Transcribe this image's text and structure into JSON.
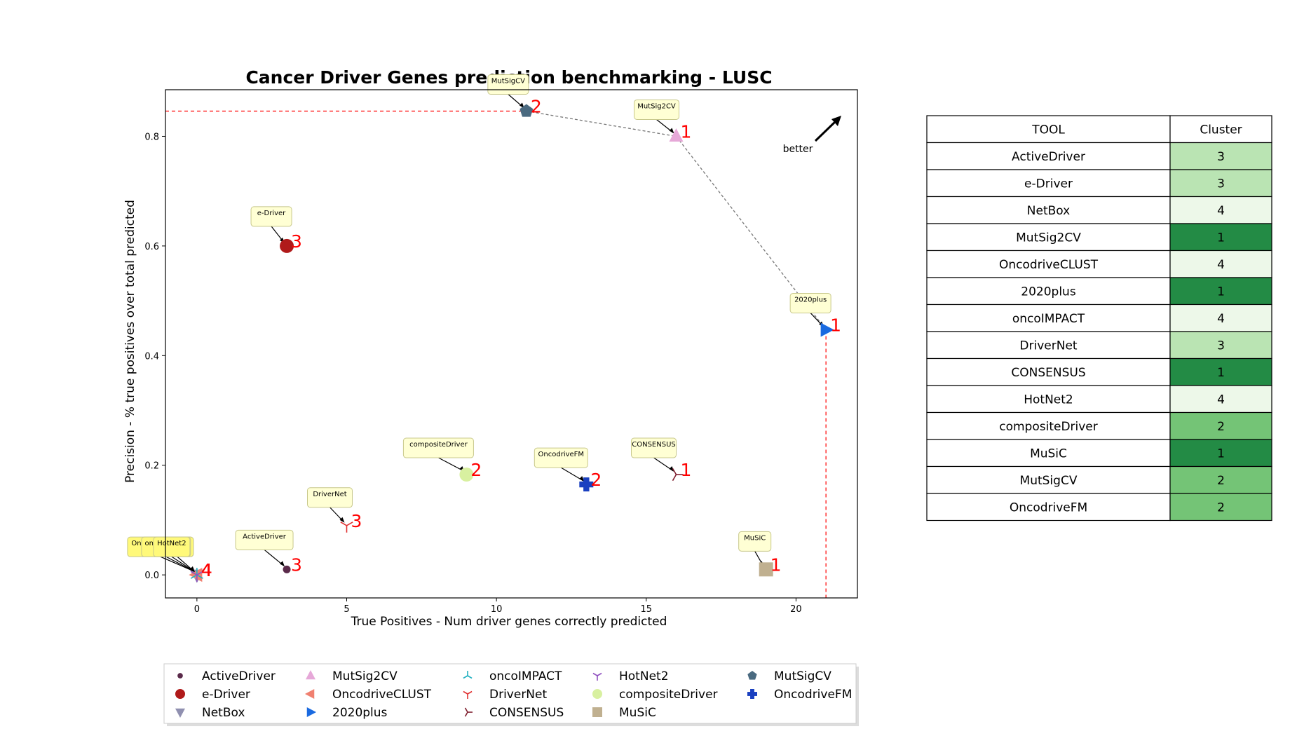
{
  "chart_data": {
    "type": "scatter",
    "title": "Cancer Driver Genes prediction benchmarking - LUSC",
    "xlabel": "True Positives - Num driver genes correctly predicted",
    "ylabel": "Precision - % true positives over total predicted",
    "xlim": [
      -1.05,
      22.05
    ],
    "ylim": [
      -0.042,
      0.885
    ],
    "xticks": [
      0,
      5,
      10,
      15,
      20
    ],
    "yticks": [
      0.0,
      0.2,
      0.4,
      0.6,
      0.8
    ],
    "grid": false,
    "legend_position": "below",
    "better_label": "better",
    "points": [
      {
        "name": "ActiveDriver",
        "x": 3,
        "y": 0.01,
        "cluster": 3,
        "marker": "circle-small",
        "color": "#5a2a4a"
      },
      {
        "name": "e-Driver",
        "x": 3,
        "y": 0.6,
        "cluster": 3,
        "marker": "circle",
        "color": "#b01a1a"
      },
      {
        "name": "NetBox",
        "x": 0,
        "y": 0.0,
        "cluster": 4,
        "marker": "triangle-down",
        "color": "#9090b0"
      },
      {
        "name": "MutSig2CV",
        "x": 16,
        "y": 0.8,
        "cluster": 1,
        "marker": "triangle-up",
        "color": "#e6a8d8"
      },
      {
        "name": "OncodriveCLUST",
        "x": 0,
        "y": 0.0,
        "cluster": 4,
        "marker": "triangle-left",
        "color": "#f08070"
      },
      {
        "name": "2020plus",
        "x": 21,
        "y": 0.447,
        "cluster": 1,
        "marker": "triangle-right",
        "color": "#1a6ae0"
      },
      {
        "name": "oncoIMPACT",
        "x": 0,
        "y": 0.0,
        "cluster": 4,
        "marker": "tri-down",
        "color": "#20b0c0"
      },
      {
        "name": "DriverNet",
        "x": 5,
        "y": 0.09,
        "cluster": 3,
        "marker": "tri-up",
        "color": "#e03030"
      },
      {
        "name": "CONSENSUS",
        "x": 16,
        "y": 0.183,
        "cluster": 1,
        "marker": "tri-left",
        "color": "#802030"
      },
      {
        "name": "HotNet2",
        "x": 0,
        "y": 0.0,
        "cluster": 4,
        "marker": "tri-right",
        "color": "#9050c0"
      },
      {
        "name": "compositeDriver",
        "x": 9,
        "y": 0.183,
        "cluster": 2,
        "marker": "octagon",
        "color": "#d8f0a0"
      },
      {
        "name": "MuSiC",
        "x": 19,
        "y": 0.01,
        "cluster": 1,
        "marker": "square",
        "color": "#c0b090"
      },
      {
        "name": "MutSigCV",
        "x": 11,
        "y": 0.846,
        "cluster": 2,
        "marker": "pentagon",
        "color": "#4a6a80"
      },
      {
        "name": "OncodriveFM",
        "x": 13,
        "y": 0.165,
        "cluster": 2,
        "marker": "plus",
        "color": "#1a40c0"
      }
    ],
    "pareto_frontier": [
      [
        11,
        0.846
      ],
      [
        16,
        0.8
      ],
      [
        21,
        0.447
      ]
    ],
    "reference_lines": {
      "x": 21,
      "y": 0.846
    }
  },
  "table": {
    "headers": [
      "TOOL",
      "Cluster"
    ],
    "rows": [
      {
        "tool": "ActiveDriver",
        "cluster": "3"
      },
      {
        "tool": "e-Driver",
        "cluster": "3"
      },
      {
        "tool": "NetBox",
        "cluster": "4"
      },
      {
        "tool": "MutSig2CV",
        "cluster": "1"
      },
      {
        "tool": "OncodriveCLUST",
        "cluster": "4"
      },
      {
        "tool": "2020plus",
        "cluster": "1"
      },
      {
        "tool": "oncoIMPACT",
        "cluster": "4"
      },
      {
        "tool": "DriverNet",
        "cluster": "3"
      },
      {
        "tool": "CONSENSUS",
        "cluster": "1"
      },
      {
        "tool": "HotNet2",
        "cluster": "4"
      },
      {
        "tool": "compositeDriver",
        "cluster": "2"
      },
      {
        "tool": "MuSiC",
        "cluster": "1"
      },
      {
        "tool": "MutSigCV",
        "cluster": "2"
      },
      {
        "tool": "OncodriveFM",
        "cluster": "2"
      }
    ],
    "cluster_colors": {
      "1": "#238b45",
      "2": "#74c476",
      "3": "#bae4b3",
      "4": "#edf8e9"
    }
  }
}
